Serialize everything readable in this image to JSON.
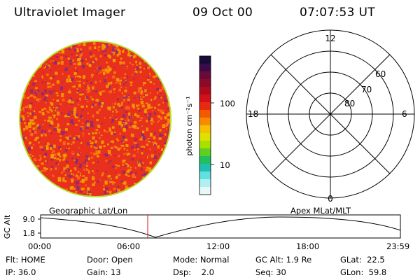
{
  "header": {
    "instrument": "Ultraviolet Imager",
    "date": "09 Oct 00",
    "time": "07:07:53 UT"
  },
  "colorbar": {
    "unit_label": "photon cm⁻²s⁻¹",
    "tick_labels": [
      "100",
      "10"
    ],
    "colors_top_to_bottom": [
      "#1a0a3a",
      "#3a0a4a",
      "#6a0a3a",
      "#8a0a2a",
      "#b00a1a",
      "#d0101a",
      "#e82a10",
      "#f25a00",
      "#f88a00",
      "#f5c000",
      "#e0e000",
      "#a8e000",
      "#60d020",
      "#20c060",
      "#20c0b0",
      "#60e0e0",
      "#b0f0f0",
      "#e8f8f8"
    ]
  },
  "earth_image": {
    "base_color": "#e8301c",
    "speckle_colors": [
      "#f5a000",
      "#8a2a7a",
      "#ff6a1a"
    ],
    "rim_color": "#b8e030"
  },
  "polar_grid": {
    "mlt_labels": {
      "top": "12",
      "left": "18",
      "right": "6",
      "bottom": "0"
    },
    "lat_labels": [
      "60",
      "70",
      "80"
    ]
  },
  "timeline": {
    "left_title": "Geographic Lat/Lon",
    "right_title": "Apex MLat/MLT",
    "y_axis_label": "GC Alt",
    "y_ticks": [
      "9.0",
      "1.8"
    ],
    "x_ticks": [
      "00:00",
      "06:00",
      "12:00",
      "18:00",
      "23:59"
    ],
    "marker_color": "#d01010"
  },
  "status": {
    "row1": [
      {
        "label": "Flt:",
        "value": "HOME"
      },
      {
        "label": "Door:",
        "value": "Open"
      },
      {
        "label": "Mode:",
        "value": "Normal"
      },
      {
        "label": "GC Alt:",
        "value": "1.9 Re"
      },
      {
        "label": "GLat:",
        "value": "22.5"
      }
    ],
    "row2": [
      {
        "label": "IP:",
        "value": "36.0"
      },
      {
        "label": "Gain:",
        "value": "13"
      },
      {
        "label": "Dsp:",
        "value": "2.0"
      },
      {
        "label": "Seq:",
        "value": "30"
      },
      {
        "label": "GLon:",
        "value": "59.8"
      }
    ]
  }
}
